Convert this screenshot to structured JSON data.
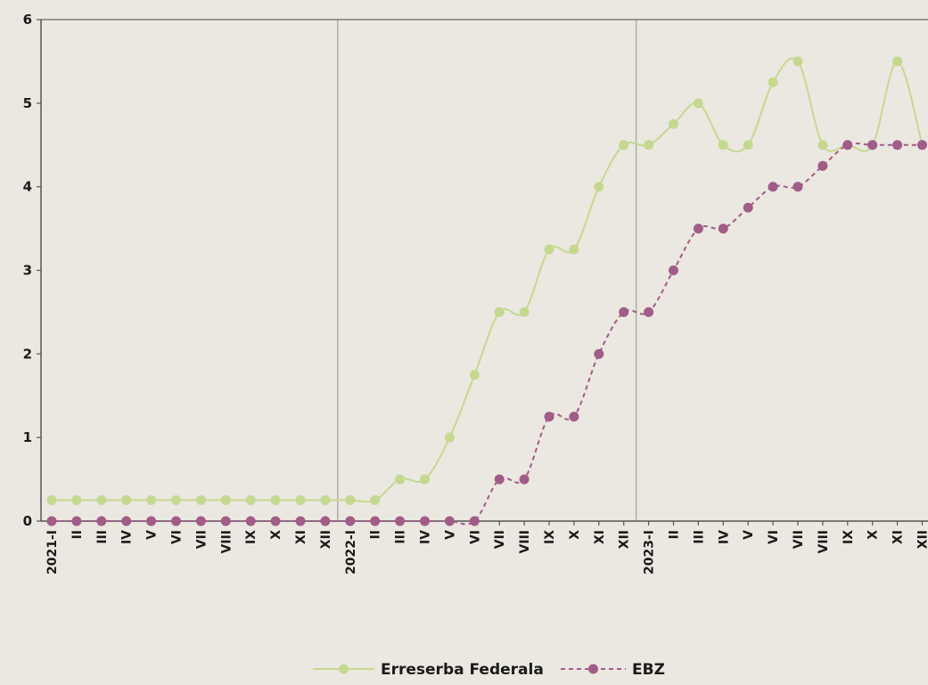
{
  "chart_data": {
    "type": "line",
    "title": "",
    "xlabel": "",
    "ylabel": "",
    "ylim": [
      0,
      6
    ],
    "yticks": [
      "0",
      "1",
      "2",
      "3",
      "4",
      "5",
      "6"
    ],
    "categories": [
      "2021-I",
      "II",
      "III",
      "IV",
      "V",
      "VI",
      "VII",
      "VIII",
      "IX",
      "X",
      "XI",
      "XII",
      "2022-I",
      "II",
      "III",
      "IV",
      "V",
      "VI",
      "VII",
      "VIII",
      "IX",
      "X",
      "XI",
      "XII",
      "2023-I",
      "II",
      "III",
      "IV",
      "V",
      "VI",
      "VII",
      "VIII",
      "IX",
      "X",
      "XI",
      "XII"
    ],
    "year_separators_after": [
      "2021-XII/2022-I",
      "2022-XII/2023-I"
    ],
    "series": [
      {
        "name": "Erreserba Federala",
        "color": "#c5d88f",
        "style": "solid",
        "values": [
          0.25,
          0.25,
          0.25,
          0.25,
          0.25,
          0.25,
          0.25,
          0.25,
          0.25,
          0.25,
          0.25,
          0.25,
          0.25,
          0.25,
          0.5,
          0.5,
          1,
          1.75,
          2.5,
          2.5,
          3.25,
          3.25,
          4,
          4.5,
          4.5,
          4.75,
          5,
          4.5,
          4.5,
          5.25,
          5.5,
          4.5,
          4.5,
          4.5,
          5.5,
          4.5
        ]
      },
      {
        "name": "EBZ",
        "color": "#a15c88",
        "style": "dashed",
        "values": [
          0,
          0,
          0,
          0,
          0,
          0,
          0,
          0,
          0,
          0,
          0,
          0,
          0,
          0,
          0,
          0,
          0,
          0,
          0.5,
          0.5,
          1.25,
          1.25,
          2,
          2.5,
          2.5,
          3,
          3.5,
          3.5,
          3.75,
          4,
          4,
          4.25,
          4.5,
          4.5,
          4.5,
          4.5
        ]
      }
    ],
    "legend": {
      "position": "bottom-center"
    },
    "grid": false
  }
}
